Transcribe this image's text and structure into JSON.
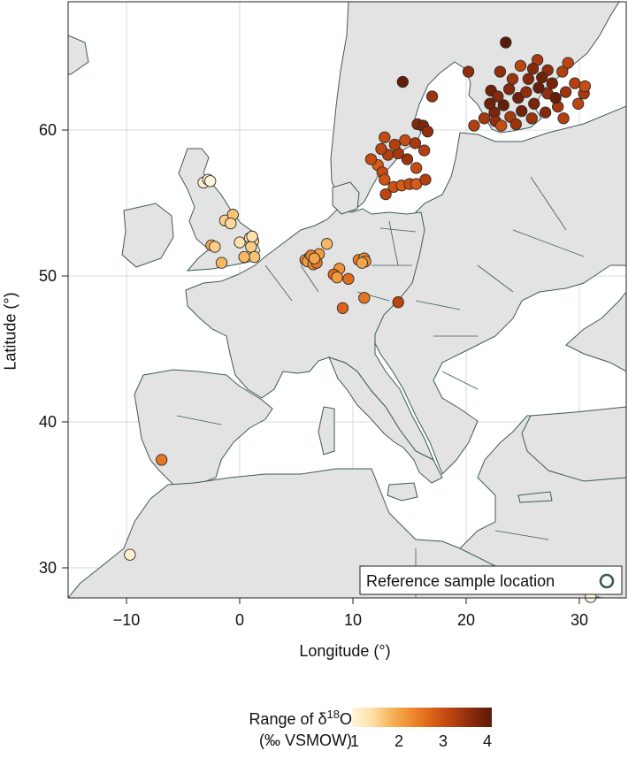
{
  "axes": {
    "x_label": "Longitude (°)",
    "y_label": "Latitude (°)",
    "x_ticks": [
      "−10",
      "0",
      "10",
      "20",
      "30"
    ],
    "y_ticks": [
      "30",
      "40",
      "50",
      "60"
    ]
  },
  "legend": {
    "label": "Reference sample location"
  },
  "colorbar": {
    "title_line1": "Range of δ",
    "title_sup": "18",
    "title_tail": "O",
    "title_line2": "(‰ VSMOW)",
    "ticks": [
      "1",
      "2",
      "3",
      "4"
    ],
    "colors": [
      "#fff6dc",
      "#fde0a6",
      "#f7b259",
      "#ee8a2e",
      "#dc6118",
      "#b9420f",
      "#8a2a0c",
      "#5a1a08"
    ]
  },
  "colors": {
    "land": "#e3e3e3",
    "sea": "#ffffff",
    "coast": "#3f5a5a",
    "grid": "#d8d8d8"
  },
  "points": [
    {
      "lon": -3.2,
      "lat": 56.4,
      "v": 1.1
    },
    {
      "lon": -2.8,
      "lat": 56.6,
      "v": 1.2
    },
    {
      "lon": -2.6,
      "lat": 56.5,
      "v": 1.0
    },
    {
      "lon": -1.3,
      "lat": 53.8,
      "v": 1.6
    },
    {
      "lon": -0.6,
      "lat": 54.2,
      "v": 1.7
    },
    {
      "lon": -0.8,
      "lat": 53.6,
      "v": 1.5
    },
    {
      "lon": 0.0,
      "lat": 52.3,
      "v": 1.4
    },
    {
      "lon": 0.9,
      "lat": 52.6,
      "v": 1.3
    },
    {
      "lon": 1.2,
      "lat": 52.4,
      "v": 1.5
    },
    {
      "lon": 1.0,
      "lat": 52.0,
      "v": 1.6
    },
    {
      "lon": 1.3,
      "lat": 51.3,
      "v": 1.7
    },
    {
      "lon": 0.4,
      "lat": 51.3,
      "v": 1.8
    },
    {
      "lon": -2.5,
      "lat": 52.1,
      "v": 1.9
    },
    {
      "lon": -2.2,
      "lat": 52.0,
      "v": 1.6
    },
    {
      "lon": -1.6,
      "lat": 50.9,
      "v": 1.8
    },
    {
      "lon": 1.1,
      "lat": 52.7,
      "v": 1.4
    },
    {
      "lon": 5.8,
      "lat": 51.1,
      "v": 2.2
    },
    {
      "lon": 6.2,
      "lat": 51.3,
      "v": 2.0
    },
    {
      "lon": 6.0,
      "lat": 51.0,
      "v": 2.1
    },
    {
      "lon": 6.5,
      "lat": 50.8,
      "v": 2.3
    },
    {
      "lon": 7.0,
      "lat": 51.5,
      "v": 2.1
    },
    {
      "lon": 6.8,
      "lat": 50.9,
      "v": 2.5
    },
    {
      "lon": 7.7,
      "lat": 52.2,
      "v": 1.8
    },
    {
      "lon": 6.3,
      "lat": 51.4,
      "v": 2.4
    },
    {
      "lon": 6.6,
      "lat": 51.2,
      "v": 2.0
    },
    {
      "lon": 8.8,
      "lat": 50.5,
      "v": 2.2
    },
    {
      "lon": 8.3,
      "lat": 50.1,
      "v": 2.6
    },
    {
      "lon": 8.6,
      "lat": 49.9,
      "v": 2.1
    },
    {
      "lon": 9.6,
      "lat": 49.8,
      "v": 2.6
    },
    {
      "lon": 10.5,
      "lat": 51.1,
      "v": 2.4
    },
    {
      "lon": 11.0,
      "lat": 51.2,
      "v": 2.2
    },
    {
      "lon": 11.1,
      "lat": 51.0,
      "v": 2.3
    },
    {
      "lon": 10.8,
      "lat": 50.9,
      "v": 2.0
    },
    {
      "lon": 11.0,
      "lat": 48.5,
      "v": 2.5
    },
    {
      "lon": 9.1,
      "lat": 47.8,
      "v": 2.7
    },
    {
      "lon": 14.0,
      "lat": 48.2,
      "v": 3.1
    },
    {
      "lon": 12.8,
      "lat": 59.5,
      "v": 3.0
    },
    {
      "lon": 13.1,
      "lat": 58.3,
      "v": 3.2
    },
    {
      "lon": 12.2,
      "lat": 57.6,
      "v": 2.8
    },
    {
      "lon": 12.6,
      "lat": 57.1,
      "v": 3.0
    },
    {
      "lon": 12.8,
      "lat": 56.6,
      "v": 2.9
    },
    {
      "lon": 12.9,
      "lat": 55.6,
      "v": 3.1
    },
    {
      "lon": 13.6,
      "lat": 56.1,
      "v": 2.9
    },
    {
      "lon": 14.3,
      "lat": 56.2,
      "v": 2.8
    },
    {
      "lon": 15.0,
      "lat": 56.3,
      "v": 3.0
    },
    {
      "lon": 15.6,
      "lat": 56.3,
      "v": 2.8
    },
    {
      "lon": 16.4,
      "lat": 56.6,
      "v": 3.2
    },
    {
      "lon": 15.6,
      "lat": 57.4,
      "v": 3.0
    },
    {
      "lon": 14.0,
      "lat": 58.4,
      "v": 3.3
    },
    {
      "lon": 14.8,
      "lat": 58.0,
      "v": 3.4
    },
    {
      "lon": 16.3,
      "lat": 58.6,
      "v": 3.2
    },
    {
      "lon": 15.5,
      "lat": 59.1,
      "v": 3.3
    },
    {
      "lon": 14.6,
      "lat": 59.3,
      "v": 3.0
    },
    {
      "lon": 13.7,
      "lat": 59.0,
      "v": 3.2
    },
    {
      "lon": 15.7,
      "lat": 60.4,
      "v": 3.6
    },
    {
      "lon": 16.2,
      "lat": 60.3,
      "v": 3.7
    },
    {
      "lon": 16.6,
      "lat": 59.9,
      "v": 3.5
    },
    {
      "lon": 12.5,
      "lat": 58.7,
      "v": 3.1
    },
    {
      "lon": 11.6,
      "lat": 58.0,
      "v": 3.0
    },
    {
      "lon": 14.4,
      "lat": 63.3,
      "v": 3.9
    },
    {
      "lon": 17.0,
      "lat": 62.3,
      "v": 3.4
    },
    {
      "lon": 20.2,
      "lat": 64.0,
      "v": 3.5
    },
    {
      "lon": 23.5,
      "lat": 66.0,
      "v": 4.0
    },
    {
      "lon": 20.7,
      "lat": 60.3,
      "v": 3.2
    },
    {
      "lon": 22.2,
      "lat": 62.7,
      "v": 3.8
    },
    {
      "lon": 22.8,
      "lat": 62.3,
      "v": 3.6
    },
    {
      "lon": 23.3,
      "lat": 61.7,
      "v": 3.9
    },
    {
      "lon": 22.5,
      "lat": 61.2,
      "v": 3.7
    },
    {
      "lon": 23.8,
      "lat": 62.8,
      "v": 3.6
    },
    {
      "lon": 24.6,
      "lat": 62.2,
      "v": 3.8
    },
    {
      "lon": 25.3,
      "lat": 62.6,
      "v": 3.5
    },
    {
      "lon": 24.1,
      "lat": 63.5,
      "v": 3.4
    },
    {
      "lon": 25.5,
      "lat": 63.5,
      "v": 3.6
    },
    {
      "lon": 26.4,
      "lat": 62.9,
      "v": 3.9
    },
    {
      "lon": 27.2,
      "lat": 62.5,
      "v": 3.5
    },
    {
      "lon": 26.0,
      "lat": 61.8,
      "v": 3.7
    },
    {
      "lon": 24.9,
      "lat": 61.3,
      "v": 3.8
    },
    {
      "lon": 23.9,
      "lat": 60.9,
      "v": 3.3
    },
    {
      "lon": 22.6,
      "lat": 60.6,
      "v": 3.5
    },
    {
      "lon": 25.8,
      "lat": 60.8,
      "v": 3.4
    },
    {
      "lon": 27.0,
      "lat": 61.2,
      "v": 3.6
    },
    {
      "lon": 28.1,
      "lat": 61.6,
      "v": 3.3
    },
    {
      "lon": 28.8,
      "lat": 62.6,
      "v": 3.4
    },
    {
      "lon": 29.6,
      "lat": 63.2,
      "v": 3.2
    },
    {
      "lon": 30.4,
      "lat": 62.5,
      "v": 3.3
    },
    {
      "lon": 29.9,
      "lat": 61.8,
      "v": 3.1
    },
    {
      "lon": 28.5,
      "lat": 64.0,
      "v": 3.2
    },
    {
      "lon": 27.2,
      "lat": 64.1,
      "v": 3.5
    },
    {
      "lon": 26.3,
      "lat": 64.8,
      "v": 3.3
    },
    {
      "lon": 27.6,
      "lat": 63.2,
      "v": 3.7
    },
    {
      "lon": 24.8,
      "lat": 64.4,
      "v": 3.1
    },
    {
      "lon": 23.0,
      "lat": 64.0,
      "v": 3.5
    },
    {
      "lon": 22.1,
      "lat": 61.8,
      "v": 3.8
    },
    {
      "lon": 21.6,
      "lat": 60.8,
      "v": 3.3
    },
    {
      "lon": 28.6,
      "lat": 60.8,
      "v": 3.2
    },
    {
      "lon": 27.9,
      "lat": 62.2,
      "v": 3.9
    },
    {
      "lon": 26.7,
      "lat": 63.6,
      "v": 3.8
    },
    {
      "lon": 25.9,
      "lat": 64.2,
      "v": 3.6
    },
    {
      "lon": 29.0,
      "lat": 64.6,
      "v": 3.1
    },
    {
      "lon": 30.5,
      "lat": 63.0,
      "v": 3.0
    },
    {
      "lon": 24.4,
      "lat": 60.4,
      "v": 3.4
    },
    {
      "lon": 23.1,
      "lat": 60.3,
      "v": 3.0
    },
    {
      "lon": -6.9,
      "lat": 37.4,
      "v": 2.5
    },
    {
      "lon": -9.7,
      "lat": 30.9,
      "v": 1.1
    },
    {
      "lon": 31.0,
      "lat": 28.0,
      "v": 1.0
    }
  ]
}
